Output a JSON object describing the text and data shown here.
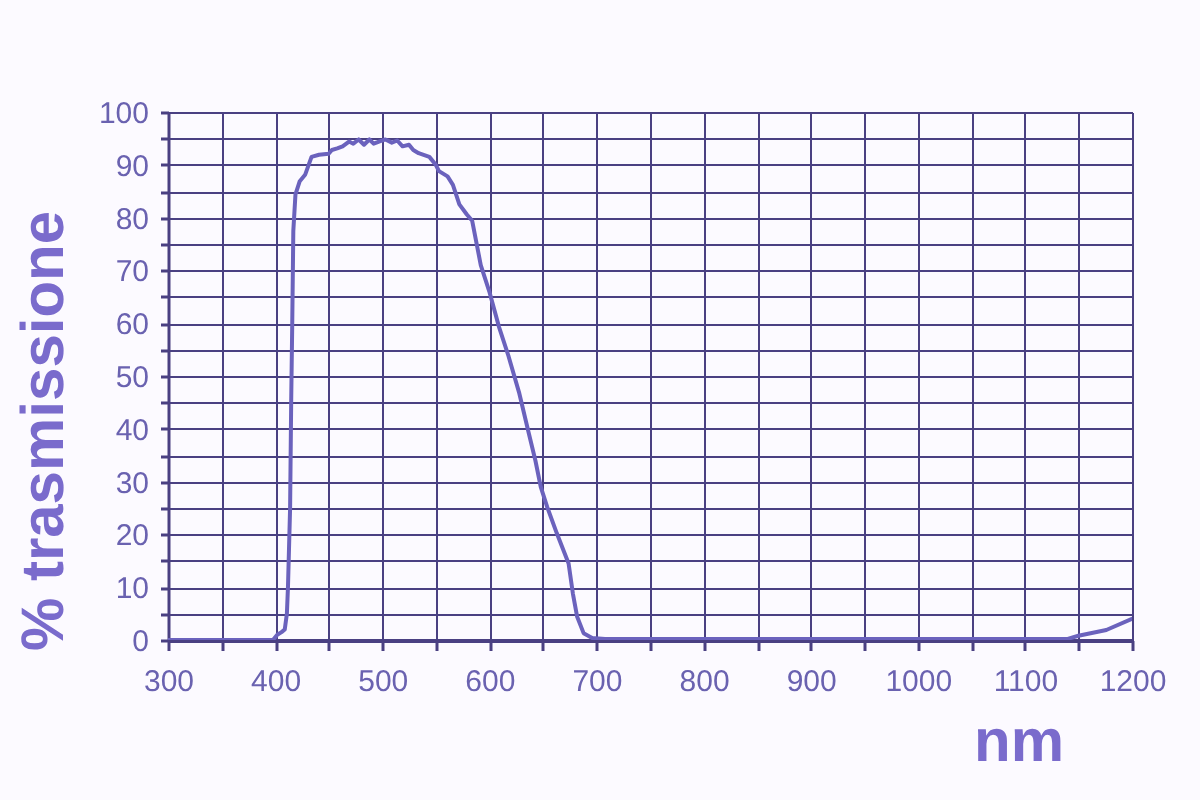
{
  "chart_data": {
    "type": "line",
    "xlabel": "nm",
    "ylabel": "% trasmissione",
    "color": "#6b62bd",
    "grid": true,
    "x": [
      300,
      398,
      402,
      406,
      409,
      411,
      412,
      414,
      415,
      416,
      417,
      419,
      423,
      428,
      434,
      441,
      450,
      453,
      458,
      463,
      469,
      473,
      478,
      483,
      488,
      492,
      497,
      503,
      509,
      514,
      519,
      525,
      529,
      534,
      544,
      550,
      553,
      561,
      566,
      572,
      579,
      584,
      592,
      600,
      609,
      618,
      628,
      637,
      643,
      648,
      654,
      663,
      674,
      678,
      682,
      688,
      696,
      708,
      1140,
      1150,
      1176,
      1200
    ],
    "values": [
      0,
      0,
      1,
      1.5,
      2,
      5,
      10,
      25,
      45,
      60,
      77.5,
      84.4,
      86.9,
      88.1,
      91.5,
      91.9,
      92.1,
      92.8,
      93.1,
      93.5,
      94.4,
      94,
      94.8,
      93.8,
      94.8,
      94,
      94.4,
      94.8,
      94.2,
      94.6,
      93.5,
      93.8,
      92.8,
      92.2,
      91.5,
      90,
      88.8,
      87.8,
      86.2,
      82.5,
      80.6,
      79.4,
      71,
      66,
      59.3,
      53.7,
      46.7,
      39,
      34,
      29,
      25.2,
      20.2,
      14.5,
      8.8,
      4.4,
      1.3,
      0.4,
      0.2,
      0.2,
      0.8,
      1.9,
      4
    ],
    "xlim": [
      300,
      1200
    ],
    "ylim": [
      0,
      100
    ],
    "xticks": [
      300,
      {
        "value": 350,
        "label": null
      },
      400,
      {
        "value": 450,
        "label": null
      },
      500,
      {
        "value": 550,
        "label": null
      },
      600,
      {
        "value": 650,
        "label": null
      },
      700,
      {
        "value": 750,
        "label": null
      },
      800,
      {
        "value": 850,
        "label": null
      },
      900,
      {
        "value": 950,
        "label": null
      },
      1000,
      {
        "value": 1050,
        "label": null
      },
      1100,
      {
        "value": 1150,
        "label": null
      },
      1200
    ],
    "yticks": [
      0,
      {
        "value": 5,
        "label": null
      },
      10,
      {
        "value": 15,
        "label": null
      },
      20,
      {
        "value": 25,
        "label": null
      },
      30,
      {
        "value": 35,
        "label": null
      },
      40,
      {
        "value": 45,
        "label": null
      },
      50,
      {
        "value": 55,
        "label": null
      },
      60,
      {
        "value": 65,
        "label": null
      },
      70,
      {
        "value": 75,
        "label": null
      },
      80,
      {
        "value": 85,
        "label": null
      },
      90,
      {
        "value": 95,
        "label": null
      },
      100
    ]
  }
}
